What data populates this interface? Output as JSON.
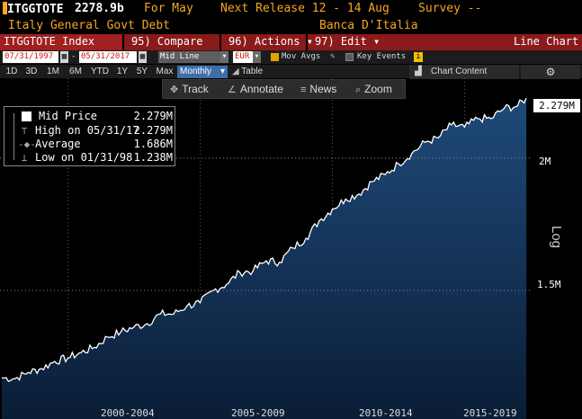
{
  "header": {
    "ticker": "ITGGTOTE",
    "value": "2278.9b",
    "for_text": "For May",
    "next_release": "Next Release 12 - 14 Aug",
    "survey": "Survey --",
    "description": "Italy General Govt Debt",
    "source": "Banca D'Italia"
  },
  "menubar": {
    "index_label": "ITGGTOTE Index",
    "compare_label": "95) Compare",
    "actions_label": "96) Actions ▾",
    "edit_label": "97) Edit ▾",
    "chart_type": "Line Chart"
  },
  "controls": {
    "start_date": "07/31/1997",
    "end_date": "05/31/2017",
    "line_type": "Mid Line",
    "currency": "EUR",
    "mov_avgs_label": "Mov Avgs",
    "key_events_label": "Key Events"
  },
  "timeframe": {
    "buttons": [
      "1D",
      "3D",
      "1M",
      "6M",
      "YTD",
      "1Y",
      "5Y",
      "Max"
    ],
    "frequency": "Monthly",
    "table_label": "Table",
    "chart_content_label": "Chart Content"
  },
  "tools": {
    "track": "Track",
    "annotate": "Annotate",
    "news": "News",
    "zoom": "Zoom"
  },
  "legend": {
    "rows": [
      {
        "name": "Mid Price",
        "value": "2.279M"
      },
      {
        "name": "High on 05/31/17",
        "value": "2.279M"
      },
      {
        "name": "Average",
        "value": "1.686M"
      },
      {
        "name": "Low on 01/31/98",
        "value": "1.238M"
      }
    ]
  },
  "colors": {
    "accent": "#f5a623",
    "menubar": "#8b1a1a",
    "active_button": "#3e6ea8",
    "area_top": "#1f4a7a",
    "area_bottom": "#0a1d36",
    "line": "#ffffff"
  },
  "axis": {
    "scale_label": "Log",
    "last_value_badge": "2.279M",
    "y_ticks": [
      "2M",
      "1.5M"
    ],
    "x_ticks": [
      "2000-2004",
      "2005-2009",
      "2010-2014",
      "2015-2019"
    ]
  },
  "chart_data": {
    "type": "area",
    "title": "",
    "xlabel": "",
    "ylabel": "",
    "y_scale": "log",
    "y_unit": "EUR millions",
    "ylim": [
      1200000,
      2380000
    ],
    "xlim": [
      "1997-07",
      "2017-07"
    ],
    "y_ticks": [
      1500000,
      2000000
    ],
    "grid": true,
    "legend_position": "top-left",
    "series": [
      {
        "name": "Mid Price",
        "x": [
          "1997-07",
          "1998-01",
          "1998-07",
          "1999-01",
          "1999-07",
          "2000-01",
          "2000-07",
          "2001-01",
          "2001-07",
          "2002-01",
          "2002-07",
          "2003-01",
          "2003-07",
          "2004-01",
          "2004-07",
          "2005-01",
          "2005-07",
          "2006-01",
          "2006-07",
          "2007-01",
          "2007-07",
          "2008-01",
          "2008-07",
          "2009-01",
          "2009-07",
          "2010-01",
          "2010-07",
          "2011-01",
          "2011-07",
          "2012-01",
          "2012-07",
          "2013-01",
          "2013-07",
          "2014-01",
          "2014-07",
          "2015-01",
          "2015-07",
          "2016-01",
          "2016-07",
          "2017-01",
          "2017-05"
        ],
        "y": [
          1240000,
          1238000,
          1255000,
          1265000,
          1285000,
          1295000,
          1310000,
          1325000,
          1355000,
          1370000,
          1385000,
          1395000,
          1425000,
          1425000,
          1450000,
          1460000,
          1500000,
          1520000,
          1560000,
          1565000,
          1600000,
          1595000,
          1645000,
          1680000,
          1745000,
          1790000,
          1830000,
          1850000,
          1900000,
          1930000,
          1975000,
          2020000,
          2070000,
          2090000,
          2150000,
          2140000,
          2180000,
          2180000,
          2230000,
          2240000,
          2279000
        ]
      }
    ]
  }
}
